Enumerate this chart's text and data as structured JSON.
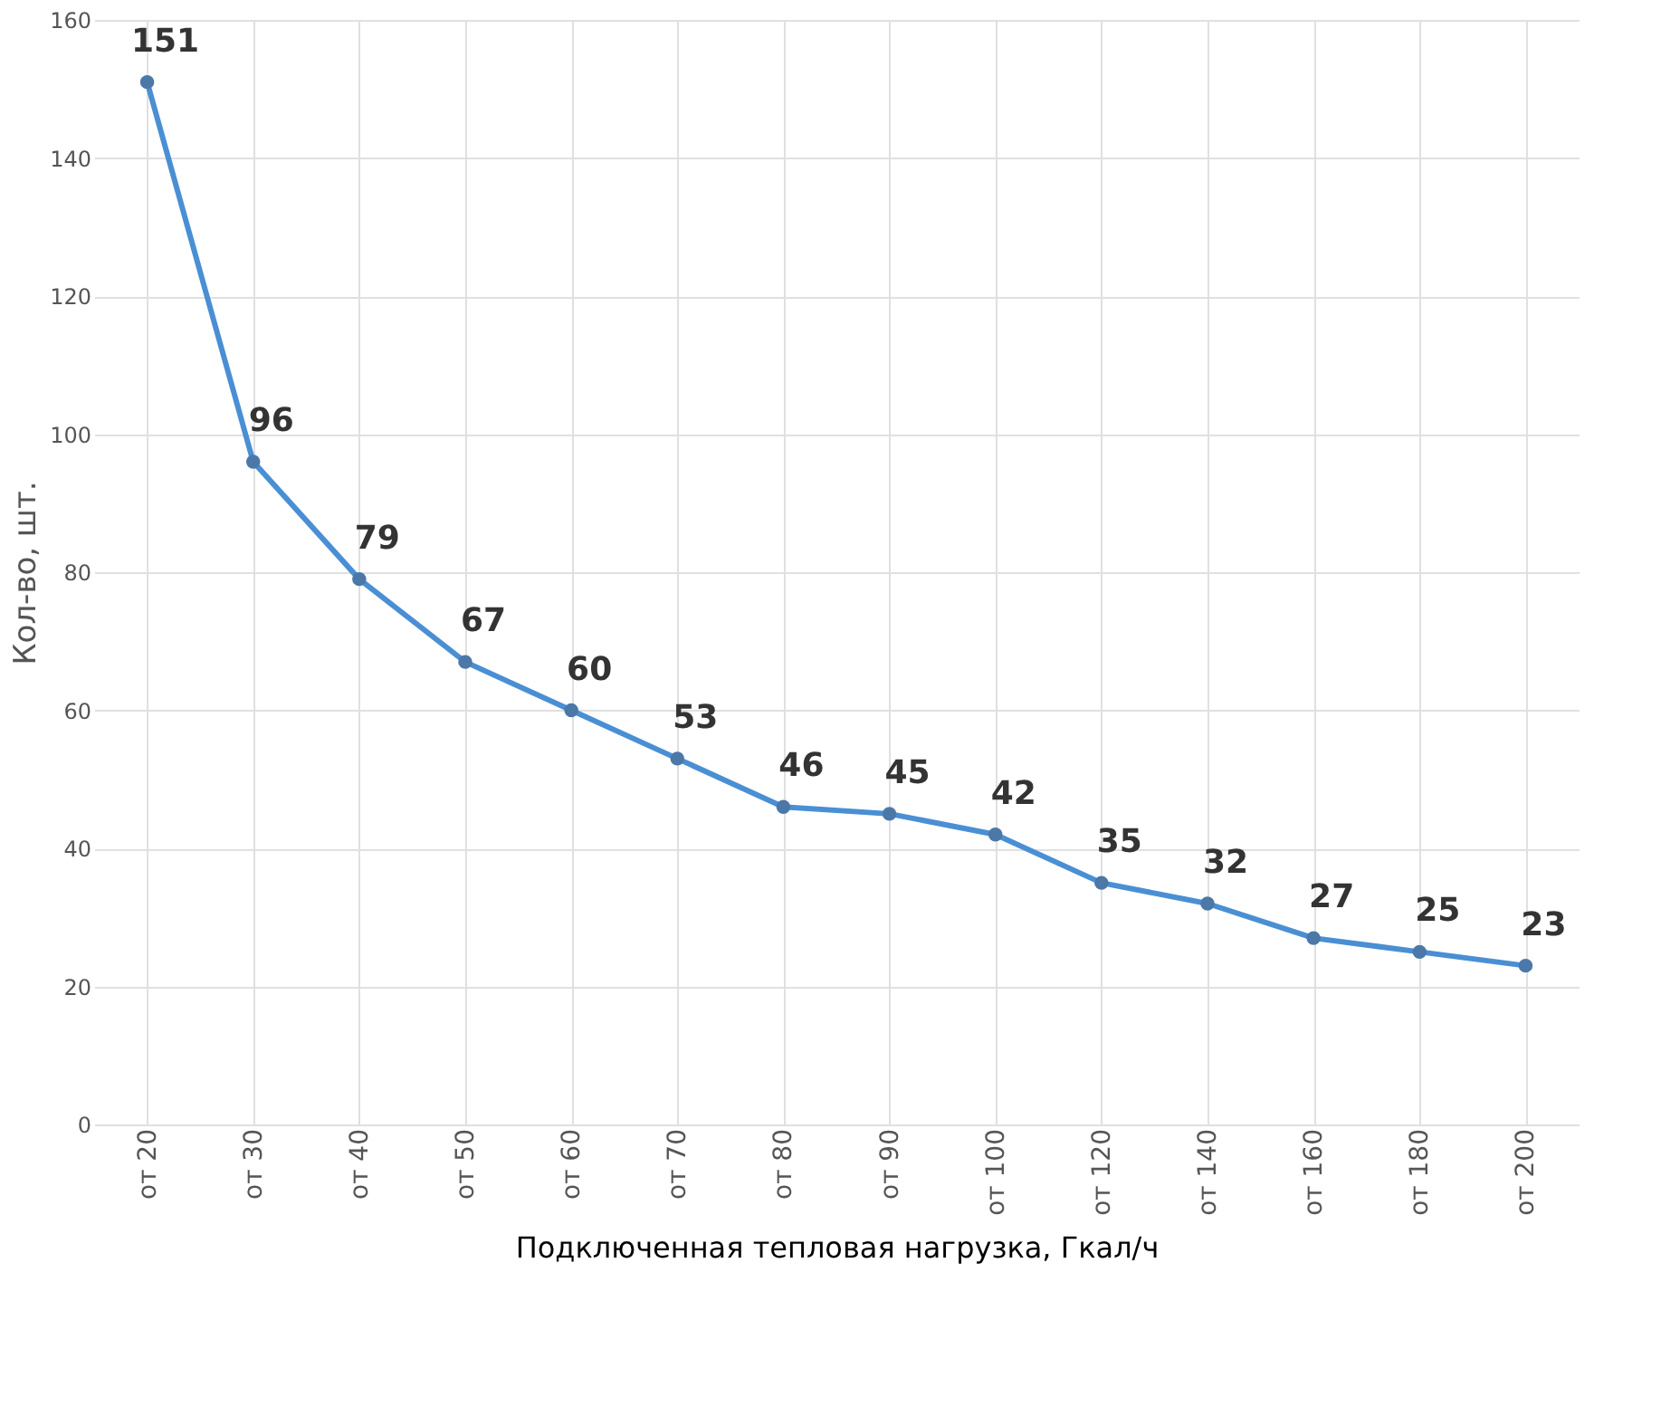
{
  "chart_data": {
    "type": "line",
    "xlabel": "Подключенная тепловая нагрузка, Гкал/ч",
    "ylabel": "Кол-во, шт.",
    "categories": [
      "от 20",
      "от 30",
      "от 40",
      "от 50",
      "от 60",
      "от 70",
      "от 80",
      "от 90",
      "от 100",
      "от 120",
      "от 140",
      "от 160",
      "от 180",
      "от 200"
    ],
    "series": [
      {
        "color": "#4a8fd4",
        "values": [
          151,
          96,
          79,
          67,
          60,
          53,
          46,
          45,
          42,
          35,
          32,
          27,
          25,
          23
        ]
      }
    ],
    "ylim": [
      0,
      160
    ],
    "yticks": [
      0,
      20,
      40,
      60,
      80,
      100,
      120,
      140,
      160
    ],
    "grid": true,
    "marker": "circle",
    "line_style": "solid",
    "data_labels": true
  }
}
